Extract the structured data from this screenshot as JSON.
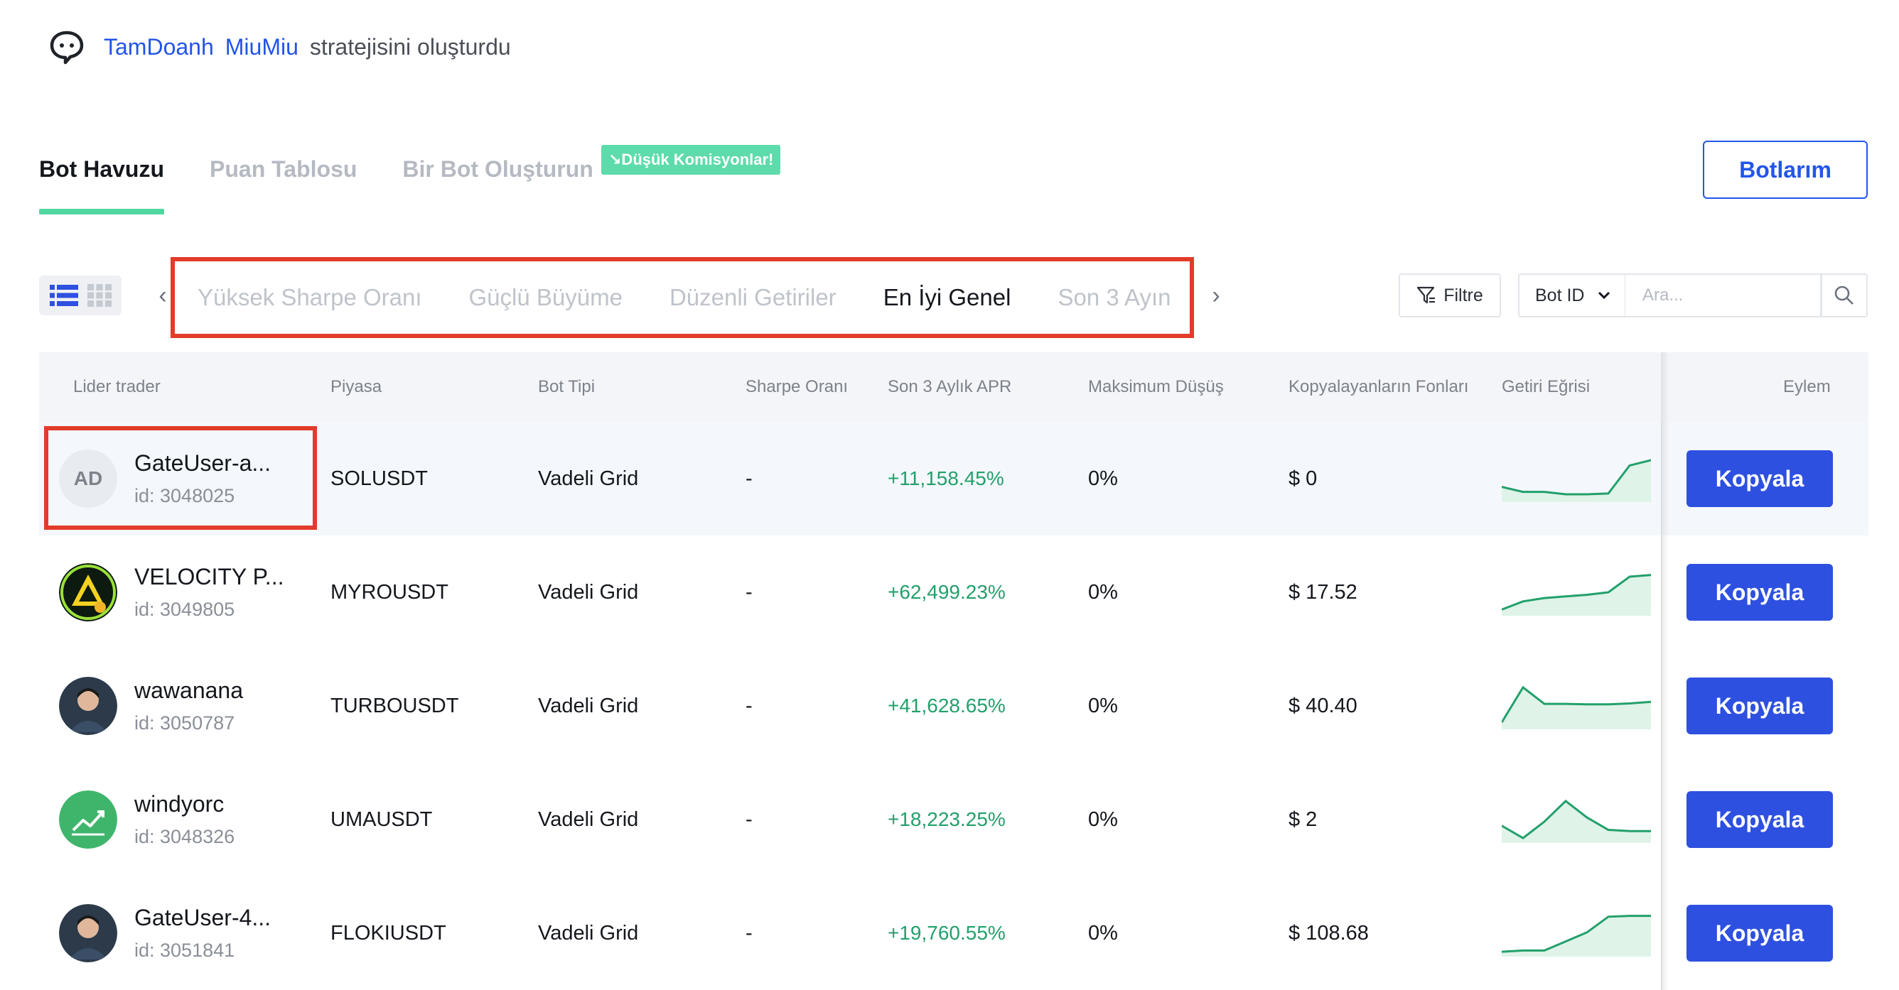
{
  "notice": {
    "icon": "chat-bubble-icon",
    "user1": "TamDoanh",
    "user2": "MiuMiu",
    "text": "stratejisini oluşturdu"
  },
  "tabs": [
    {
      "label": "Bot Havuzu",
      "active": true
    },
    {
      "label": "Puan Tablosu",
      "active": false
    },
    {
      "label": "Bir Bot Oluşturun",
      "active": false
    }
  ],
  "tab_badge": "↘Düşük Komisyonlar!",
  "my_bots_label": "Botlarım",
  "sort_tabs": [
    {
      "label": "Yüksek Sharpe Oranı",
      "active": false
    },
    {
      "label": "Güçlü Büyüme",
      "active": false
    },
    {
      "label": "Düzenli Getiriler",
      "active": false
    },
    {
      "label": "En İyi Genel",
      "active": true
    },
    {
      "label": "Son 3 Ayın",
      "active": false
    }
  ],
  "toolbar": {
    "filter_label": "Filtre",
    "select_value": "Bot ID",
    "search_placeholder": "Ara..."
  },
  "columns": [
    "Lider trader",
    "Piyasa",
    "Bot Tipi",
    "Sharpe Oranı",
    "Son 3 Aylık APR",
    "Maksimum Düşüş",
    "Kopyalayanların Fonları",
    "Getiri Eğrisi",
    "Eylem"
  ],
  "rows": [
    {
      "name": "GateUser-a...",
      "id": "id: 3048025",
      "avatar": "AD",
      "market": "SOLUSDT",
      "type": "Vadeli Grid",
      "sharpe": "-",
      "apr": "+11,158.45%",
      "drawdown": "0%",
      "funds": "$ 0",
      "curve": [
        0.3,
        0.18,
        0.18,
        0.12,
        0.12,
        0.14,
        0.82,
        0.95
      ],
      "action": "Kopyala"
    },
    {
      "name": "VELOCITY P...",
      "id": "id: 3049805",
      "avatar": "velocity-logo",
      "market": "MYROUSDT",
      "type": "Vadeli Grid",
      "sharpe": "-",
      "apr": "+62,499.23%",
      "drawdown": "0%",
      "funds": "$ 17.52",
      "curve": [
        0.08,
        0.28,
        0.36,
        0.4,
        0.44,
        0.5,
        0.88,
        0.92
      ],
      "action": "Kopyala"
    },
    {
      "name": "wawanana",
      "id": "id: 3050787",
      "avatar": "photo-avatar",
      "market": "TURBOUSDT",
      "type": "Vadeli Grid",
      "sharpe": "-",
      "apr": "+41,628.65%",
      "drawdown": "0%",
      "funds": "$ 40.40",
      "curve": [
        0.1,
        0.95,
        0.55,
        0.55,
        0.54,
        0.54,
        0.56,
        0.6
      ],
      "action": "Kopyala"
    },
    {
      "name": "windyorc",
      "id": "id: 3048326",
      "avatar": "chart-avatar",
      "market": "UMAUSDT",
      "type": "Vadeli Grid",
      "sharpe": "-",
      "apr": "+18,223.25%",
      "drawdown": "0%",
      "funds": "$ 2",
      "curve": [
        0.35,
        0.05,
        0.45,
        0.95,
        0.55,
        0.25,
        0.22,
        0.22
      ],
      "action": "Kopyala"
    },
    {
      "name": "GateUser-4...",
      "id": "id: 3051841",
      "avatar": "photo-avatar",
      "market": "FLOKIUSDT",
      "type": "Vadeli Grid",
      "sharpe": "-",
      "apr": "+19,760.55%",
      "drawdown": "0%",
      "funds": "$ 108.68",
      "curve": [
        0.05,
        0.08,
        0.08,
        0.3,
        0.52,
        0.9,
        0.92,
        0.92
      ],
      "action": "Kopyala"
    }
  ],
  "colors": {
    "accent": "#2e50e0",
    "positive": "#22a06b",
    "tab_underline": "#52d6a0",
    "highlight_box": "#e23b2a"
  }
}
